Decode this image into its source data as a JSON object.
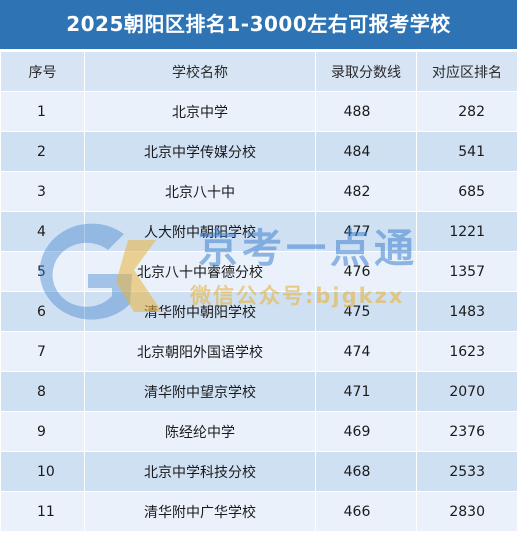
{
  "title": "2025朝阳区排名1-3000左右可报考学校",
  "columns": [
    "序号",
    "学校名称",
    "录取分数线",
    "对应区排名"
  ],
  "rows": [
    {
      "no": "1",
      "school": "北京中学",
      "score": "488",
      "rank": "282"
    },
    {
      "no": "2",
      "school": "北京中学传媒分校",
      "score": "484",
      "rank": "541"
    },
    {
      "no": "3",
      "school": "北京八十中",
      "score": "482",
      "rank": "685"
    },
    {
      "no": "4",
      "school": "人大附中朝阳学校",
      "score": "477",
      "rank": "1221"
    },
    {
      "no": "5",
      "school": "北京八十中睿德分校",
      "score": "476",
      "rank": "1357"
    },
    {
      "no": "6",
      "school": "清华附中朝阳学校",
      "score": "475",
      "rank": "1483"
    },
    {
      "no": "7",
      "school": "北京朝阳外国语学校",
      "score": "474",
      "rank": "1623"
    },
    {
      "no": "8",
      "school": "清华附中望京学校",
      "score": "471",
      "rank": "2070"
    },
    {
      "no": "9",
      "school": "陈经纶中学",
      "score": "469",
      "rank": "2376"
    },
    {
      "no": "10",
      "school": "北京中学科技分校",
      "score": "468",
      "rank": "2533"
    },
    {
      "no": "11",
      "school": "清华附中广华学校",
      "score": "466",
      "rank": "2830"
    }
  ],
  "watermark": {
    "main_text": "京考一点通",
    "sub_text": "微信公众号:bjgkzx",
    "logo_icon": "gk-logo-icon"
  },
  "colors": {
    "title_bg": "#2e74b5",
    "header_bg": "#d7e4f4",
    "row_light": "#eaf1fa",
    "row_dark": "#d0e0f3"
  }
}
